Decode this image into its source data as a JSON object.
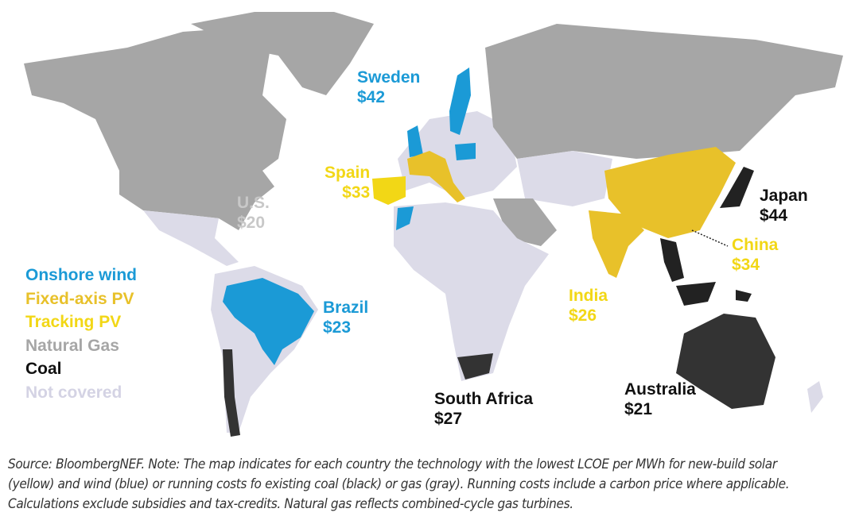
{
  "colors": {
    "onshore_wind": "#1b9ad6",
    "fixed_axis_pv": "#e8c12a",
    "tracking_pv": "#f2d716",
    "natural_gas": "#a6a6a6",
    "coal": "#222222",
    "not_covered": "#dcdbe8"
  },
  "legend": [
    {
      "label": "Onshore wind",
      "color": "#1b9ad6"
    },
    {
      "label": "Fixed-axis PV",
      "color": "#e8c12a"
    },
    {
      "label": "Tracking PV",
      "color": "#f2d716"
    },
    {
      "label": "Natural Gas",
      "color": "#a6a6a6"
    },
    {
      "label": "Coal",
      "color": "#111111"
    },
    {
      "label": "Not covered",
      "color": "#d4d3e4"
    }
  ],
  "countries": [
    {
      "name": "Sweden",
      "value": "$42",
      "technology": "Onshore wind"
    },
    {
      "name": "Spain",
      "value": "$33",
      "technology": "Fixed-axis PV"
    },
    {
      "name": "U.S.",
      "value": "$20",
      "technology": "Natural Gas"
    },
    {
      "name": "Japan",
      "value": "$44",
      "technology": "Coal"
    },
    {
      "name": "China",
      "value": "$34",
      "technology": "Fixed-axis PV"
    },
    {
      "name": "Brazil",
      "value": "$23",
      "technology": "Onshore wind"
    },
    {
      "name": "India",
      "value": "$26",
      "technology": "Fixed-axis PV"
    },
    {
      "name": "South Africa",
      "value": "$27",
      "technology": "Coal"
    },
    {
      "name": "Australia",
      "value": "$21",
      "technology": "Coal"
    }
  ],
  "caption": "Source: BloombergNEF. Note: The map indicates for each country the technology with the lowest LCOE per MWh for new-build solar (yellow) and wind (blue) or running costs fo existing coal (black) or gas (gray). Running costs include a carbon price where applicable. Calculations exclude subsidies and tax-credits. Natural gas reflects combined-cycle gas turbines."
}
